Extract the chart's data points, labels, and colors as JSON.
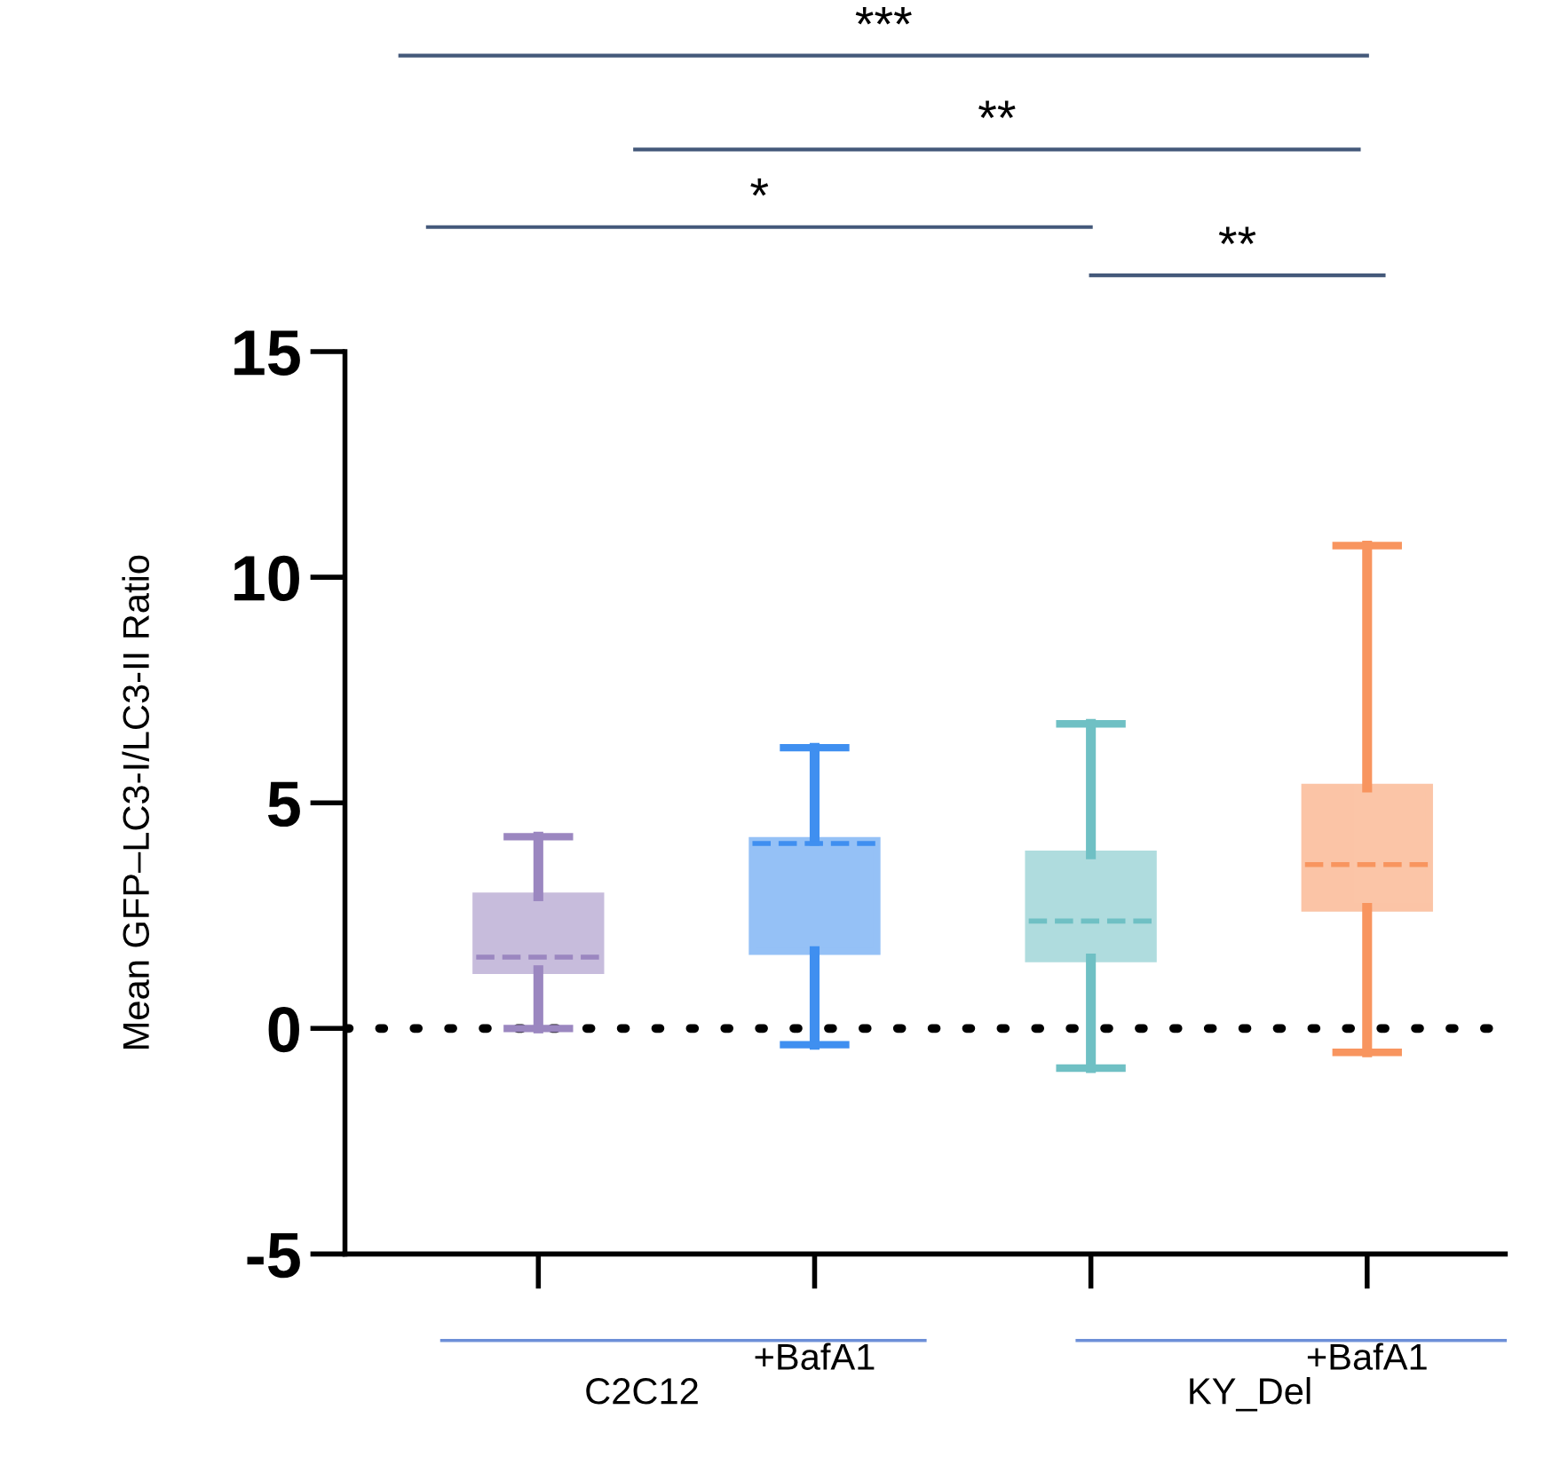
{
  "chart_data": {
    "type": "box",
    "ylabel": "Mean GFP–LC3-I/LC3-II Ratio",
    "categories": [
      null,
      "+BafA1",
      null,
      "+BafA1"
    ],
    "boxes": [
      {
        "low": 0,
        "q1": 1.29,
        "median": 1.58,
        "q3": 2.93,
        "high": 4.25
      },
      {
        "low": -0.36,
        "q1": 1.71,
        "median": 4.1,
        "q3": 4.16,
        "high": 6.22
      },
      {
        "low": -0.88,
        "q1": 1.55,
        "median": 2.38,
        "q3": 3.86,
        "high": 6.75
      },
      {
        "low": -0.53,
        "q1": 2.67,
        "median": 3.63,
        "q3": 5.34,
        "high": 10.7
      }
    ],
    "colors": [
      "#9b87c0",
      "#3f8ff0",
      "#6fc0c4",
      "#f8955f"
    ],
    "ylim": [
      -5,
      15
    ],
    "yticks": [
      -5,
      0,
      5,
      10,
      15
    ],
    "grid": false,
    "legend": false,
    "ref_lines": [
      {
        "axis": "y",
        "value": 0,
        "color": "#000000",
        "line_style": "dotted"
      }
    ],
    "annotations": [
      "***",
      "**",
      "*",
      "**",
      "C2C12",
      "KY_Del"
    ]
  }
}
